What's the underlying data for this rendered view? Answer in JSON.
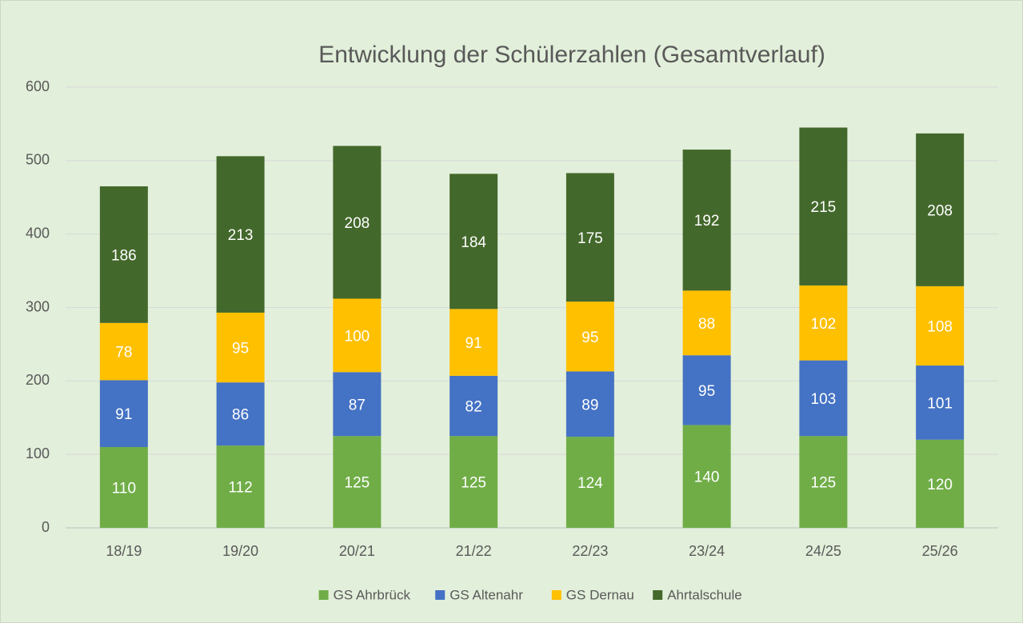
{
  "chart_data": {
    "type": "stacked_bar",
    "title": "Entwicklung der Schülerzahlen (Gesamtverlauf)",
    "categories": [
      "18/19",
      "19/20",
      "20/21",
      "21/22",
      "22/23",
      "23/24",
      "24/25",
      "25/26"
    ],
    "series": [
      {
        "name": "GS Ahrbrück",
        "color": "#70ad47",
        "values": [
          110,
          112,
          125,
          125,
          124,
          140,
          125,
          120
        ]
      },
      {
        "name": "GS Altenahr",
        "color": "#4472c4",
        "values": [
          91,
          86,
          87,
          82,
          89,
          95,
          103,
          101
        ]
      },
      {
        "name": "GS Dernau",
        "color": "#ffc000",
        "values": [
          78,
          95,
          100,
          91,
          95,
          88,
          102,
          108
        ]
      },
      {
        "name": "Ahrtalschule",
        "color": "#43682b",
        "values": [
          186,
          213,
          208,
          184,
          175,
          192,
          215,
          208
        ]
      }
    ],
    "ylim": [
      0,
      600
    ],
    "yticks": [
      0,
      100,
      200,
      300,
      400,
      500,
      600
    ],
    "grid": true,
    "legend": "bottom"
  }
}
